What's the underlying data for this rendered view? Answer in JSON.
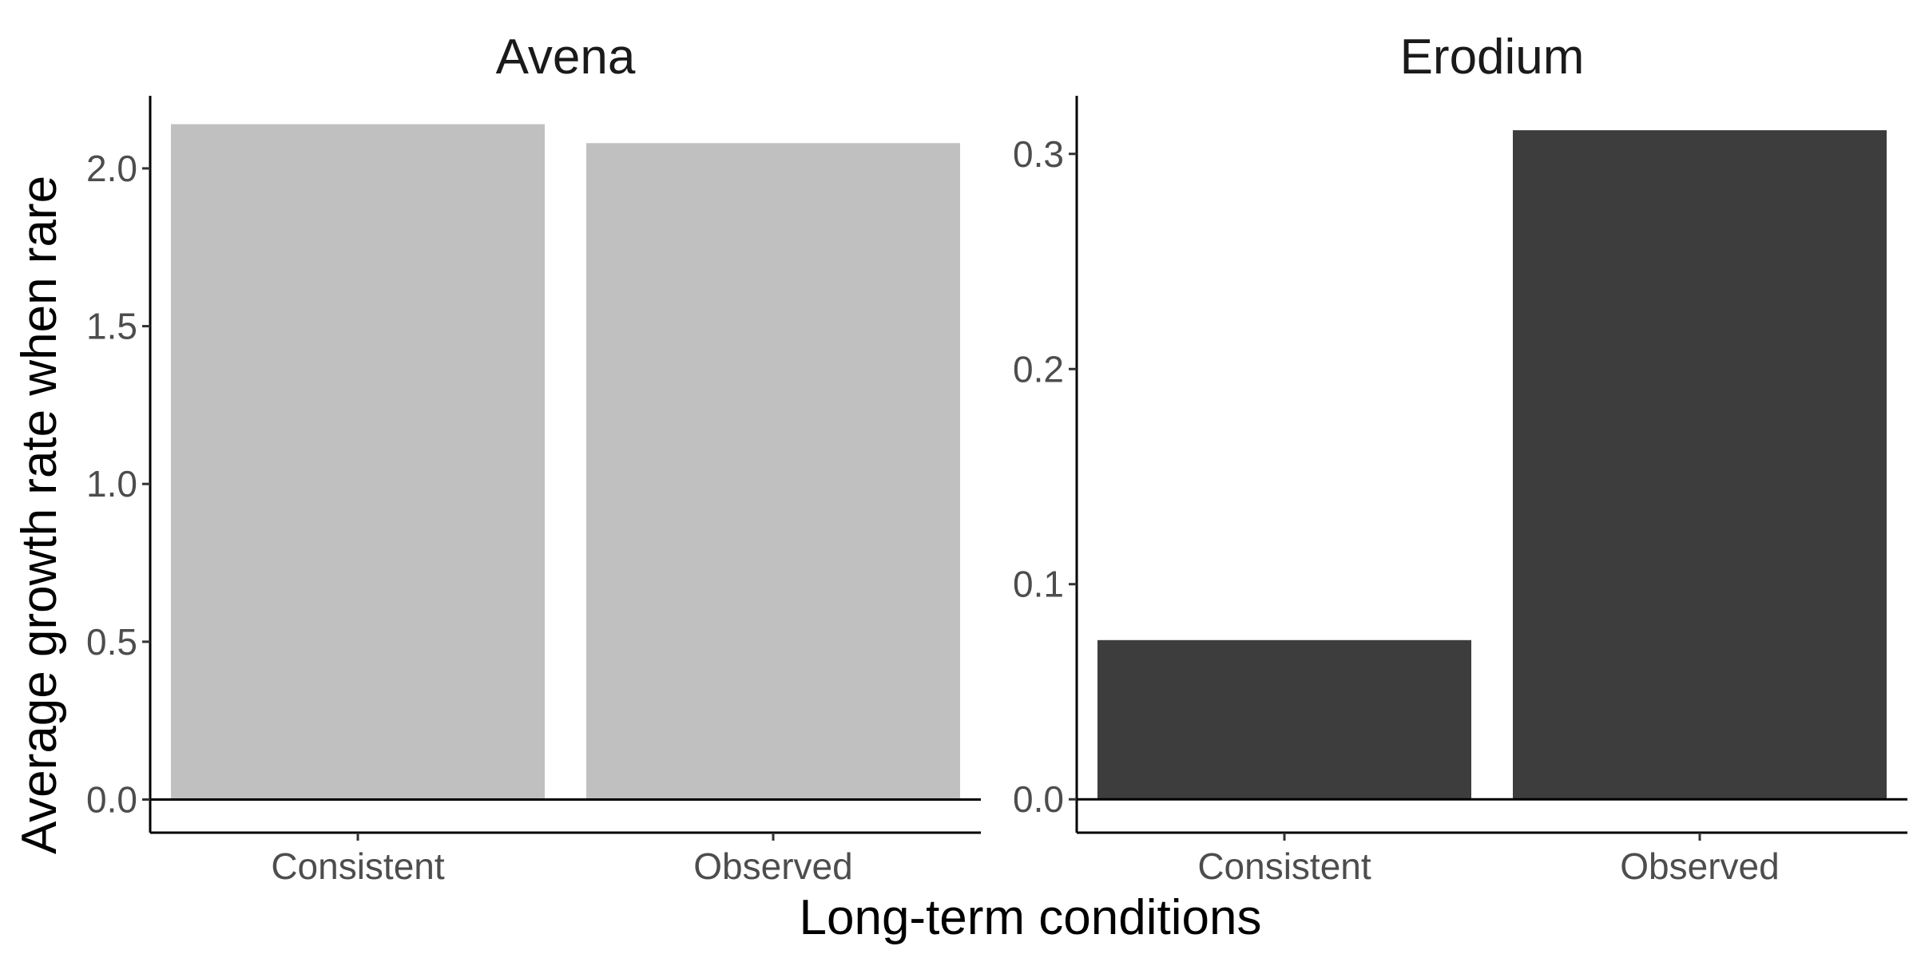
{
  "chart_data": {
    "type": "bar",
    "xlabel": "Long-term conditions",
    "ylabel": "Average growth rate when rare",
    "categories": [
      "Consistent",
      "Observed"
    ],
    "grid": false,
    "legend": "none",
    "panels": [
      {
        "title": "Avena",
        "values": [
          2.14,
          2.08
        ],
        "color": "#c0c0c0",
        "ylim": [
          -0.105,
          2.23
        ],
        "yticks": [
          0.0,
          0.5,
          1.0,
          1.5,
          2.0
        ],
        "ytick_labels": [
          "0.0",
          "0.5",
          "1.0",
          "1.5",
          "2.0"
        ]
      },
      {
        "title": "Erodium",
        "values": [
          0.074,
          0.311
        ],
        "color": "#3d3d3d",
        "ylim": [
          -0.0155,
          0.327
        ],
        "yticks": [
          0.0,
          0.1,
          0.2,
          0.3
        ],
        "ytick_labels": [
          "0.0",
          "0.1",
          "0.2",
          "0.3"
        ]
      }
    ]
  }
}
